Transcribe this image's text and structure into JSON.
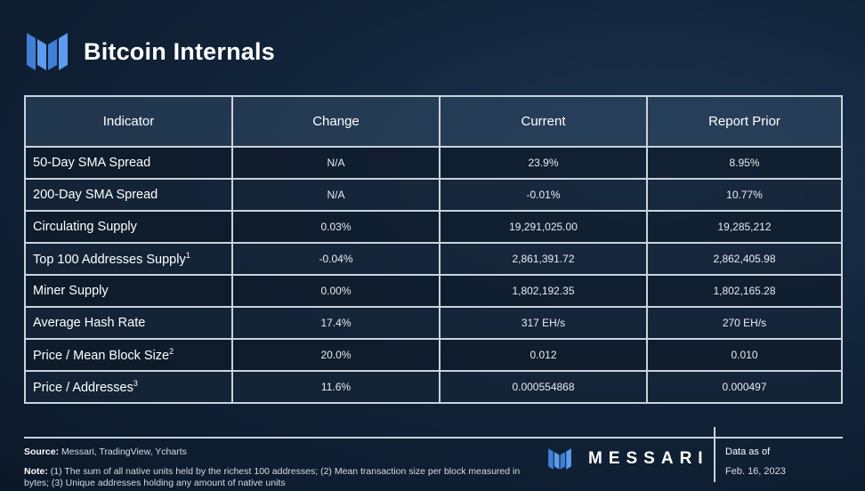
{
  "header": {
    "title": "Bitcoin Internals"
  },
  "table": {
    "columns": [
      "Indicator",
      "Change",
      "Current",
      "Report Prior"
    ],
    "rows": [
      {
        "indicator": "50-Day SMA Spread",
        "sup": "",
        "change": "N/A",
        "change_type": "na",
        "current": "23.9%",
        "prior": "8.95%"
      },
      {
        "indicator": "200-Day SMA Spread",
        "sup": "",
        "change": "N/A",
        "change_type": "na",
        "current": "-0.01%",
        "prior": "10.77%"
      },
      {
        "indicator": "Circulating Supply",
        "sup": "",
        "change": "0.03%",
        "change_type": "pos",
        "current": "19,291,025.00",
        "prior": "19,285,212"
      },
      {
        "indicator": "Top 100 Addresses Supply",
        "sup": "1",
        "change": "-0.04%",
        "change_type": "neg",
        "current": "2,861,391.72",
        "prior": "2,862,405.98"
      },
      {
        "indicator": "Miner Supply",
        "sup": "",
        "change": "0.00%",
        "change_type": "pos",
        "current": "1,802,192.35",
        "prior": "1,802,165.28"
      },
      {
        "indicator": "Average Hash Rate",
        "sup": "",
        "change": "17.4%",
        "change_type": "pos",
        "current": "317 EH/s",
        "prior": "270 EH/s"
      },
      {
        "indicator": "Price / Mean Block Size",
        "sup": "2",
        "change": "20.0%",
        "change_type": "pos",
        "current": "0.012",
        "prior": "0.010"
      },
      {
        "indicator": "Price / Addresses",
        "sup": "3",
        "change": "11.6%",
        "change_type": "pos",
        "current": "0.000554868",
        "prior": "0.000497"
      }
    ]
  },
  "footer": {
    "source_label": "Source:",
    "source_text": "Messari, TradingView, Ycharts",
    "note_label": "Note:",
    "note_text": "(1) The sum of all native units held by the richest 100 addresses; (2) Mean transaction size per block measured in bytes; (3) Unique addresses holding any amount of native units",
    "brand": "MESSARI",
    "data_as_of_label": "Data as of",
    "data_as_of_date": "Feb. 16, 2023"
  },
  "colors": {
    "positive": "#8bc34a",
    "negative": "#e53935",
    "logo_blue": "#3f7fd6"
  },
  "icons": {
    "header_logo": "messari-logo-icon",
    "footer_logo": "messari-logo-icon"
  }
}
